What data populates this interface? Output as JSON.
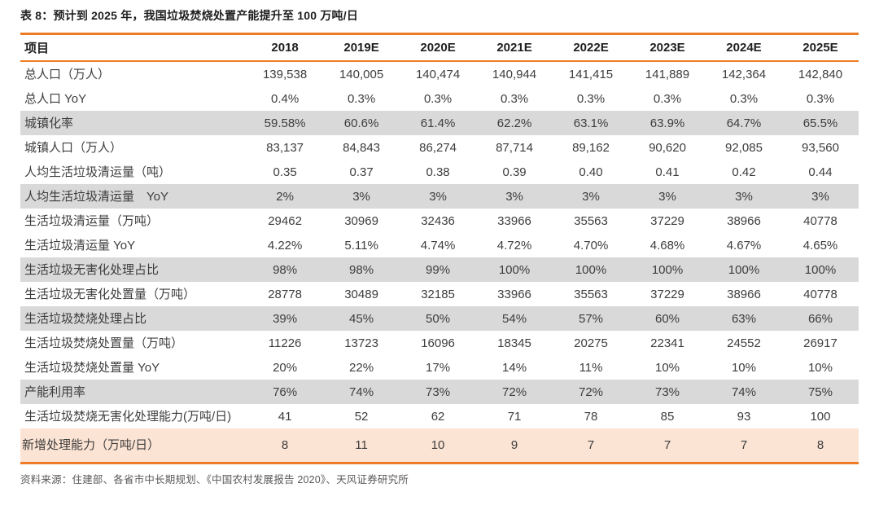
{
  "page": {
    "title": "表 8：预计到 2025 年，我国垃圾焚烧处置产能提升至 100 万吨/日",
    "source": "资料来源：住建部、各省市中长期规划、《中国农村发展报告 2020》、天风证券研究所"
  },
  "colors": {
    "accent_orange": "#ee7c26",
    "shaded_row_gray": "#d9d9d9",
    "highlight_row_peach": "#fce4d4",
    "header_text": "#1f1f1f",
    "body_text": "#3d3d3d",
    "source_text": "#595959"
  },
  "chart_data": {
    "type": "table",
    "columns": [
      "项目",
      "2018",
      "2019E",
      "2020E",
      "2021E",
      "2022E",
      "2023E",
      "2024E",
      "2025E"
    ],
    "rows": [
      {
        "label": "总人口（万人）",
        "shade": "none",
        "values": [
          "139,538",
          "140,005",
          "140,474",
          "140,944",
          "141,415",
          "141,889",
          "142,364",
          "142,840"
        ]
      },
      {
        "label": "总人口 YoY",
        "shade": "none",
        "values": [
          "0.4%",
          "0.3%",
          "0.3%",
          "0.3%",
          "0.3%",
          "0.3%",
          "0.3%",
          "0.3%"
        ]
      },
      {
        "label": "城镇化率",
        "shade": "gray",
        "values": [
          "59.58%",
          "60.6%",
          "61.4%",
          "62.2%",
          "63.1%",
          "63.9%",
          "64.7%",
          "65.5%"
        ]
      },
      {
        "label": "城镇人口（万人）",
        "shade": "none",
        "values": [
          "83,137",
          "84,843",
          "86,274",
          "87,714",
          "89,162",
          "90,620",
          "92,085",
          "93,560"
        ]
      },
      {
        "label": "人均生活垃圾清运量（吨）",
        "shade": "none",
        "values": [
          "0.35",
          "0.37",
          "0.38",
          "0.39",
          "0.40",
          "0.41",
          "0.42",
          "0.44"
        ]
      },
      {
        "label": "人均生活垃圾清运量　YoY",
        "shade": "gray",
        "values": [
          "2%",
          "3%",
          "3%",
          "3%",
          "3%",
          "3%",
          "3%",
          "3%"
        ]
      },
      {
        "label": "生活垃圾清运量（万吨）",
        "shade": "none",
        "values": [
          "29462",
          "30969",
          "32436",
          "33966",
          "35563",
          "37229",
          "38966",
          "40778"
        ]
      },
      {
        "label": "生活垃圾清运量 YoY",
        "shade": "none",
        "values": [
          "4.22%",
          "5.11%",
          "4.74%",
          "4.72%",
          "4.70%",
          "4.68%",
          "4.67%",
          "4.65%"
        ]
      },
      {
        "label": "生活垃圾无害化处理占比",
        "shade": "gray",
        "values": [
          "98%",
          "98%",
          "99%",
          "100%",
          "100%",
          "100%",
          "100%",
          "100%"
        ]
      },
      {
        "label": "生活垃圾无害化处置量（万吨）",
        "shade": "none",
        "values": [
          "28778",
          "30489",
          "32185",
          "33966",
          "35563",
          "37229",
          "38966",
          "40778"
        ]
      },
      {
        "label": "生活垃圾焚烧处理占比",
        "shade": "gray",
        "values": [
          "39%",
          "45%",
          "50%",
          "54%",
          "57%",
          "60%",
          "63%",
          "66%"
        ]
      },
      {
        "label": "生活垃圾焚烧处置量（万吨）",
        "shade": "none",
        "values": [
          "11226",
          "13723",
          "16096",
          "18345",
          "20275",
          "22341",
          "24552",
          "26917"
        ]
      },
      {
        "label": "生活垃圾焚烧处置量 YoY",
        "shade": "none",
        "values": [
          "20%",
          "22%",
          "17%",
          "14%",
          "11%",
          "10%",
          "10%",
          "10%"
        ]
      },
      {
        "label": "产能利用率",
        "shade": "gray",
        "values": [
          "76%",
          "74%",
          "73%",
          "72%",
          "72%",
          "73%",
          "74%",
          "75%"
        ]
      },
      {
        "label": "生活垃圾焚烧无害化处理能力(万吨/日)",
        "shade": "none",
        "values": [
          "41",
          "52",
          "62",
          "71",
          "78",
          "85",
          "93",
          "100"
        ]
      },
      {
        "label": "新增处理能力（万吨/日）",
        "shade": "highlight",
        "values": [
          "8",
          "11",
          "10",
          "9",
          "7",
          "7",
          "7",
          "8"
        ]
      }
    ]
  }
}
